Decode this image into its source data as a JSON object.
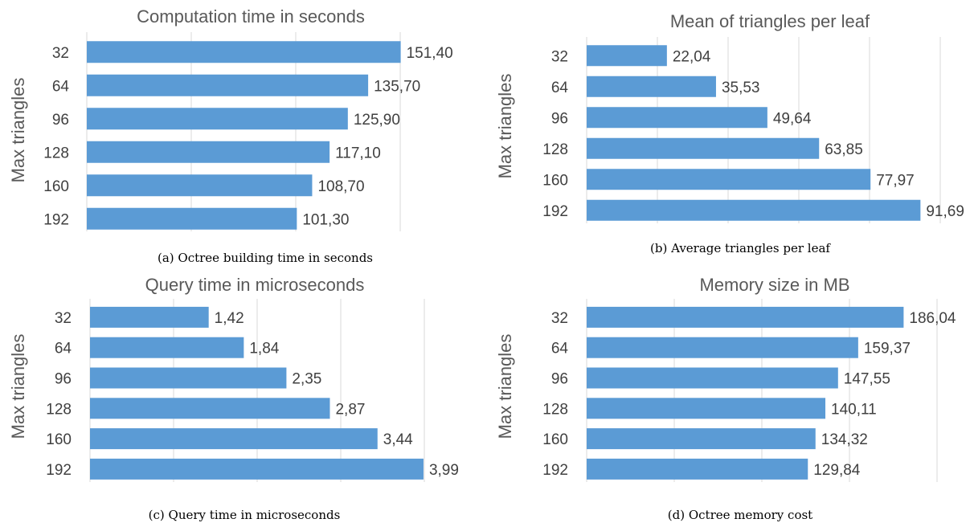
{
  "chart_data": [
    {
      "type": "bar",
      "orientation": "horizontal",
      "title": "Computation time in seconds",
      "ylabel": "Max triangles",
      "categories": [
        "32",
        "64",
        "96",
        "128",
        "160",
        "192"
      ],
      "values": [
        151.4,
        135.7,
        125.9,
        117.1,
        108.7,
        101.3
      ],
      "data_labels": [
        "151,40",
        "135,70",
        "125,90",
        "117,10",
        "108,70",
        "101,30"
      ],
      "xlim": [
        0,
        200
      ],
      "grid": true,
      "caption": "(a) Octree building time in seconds"
    },
    {
      "type": "bar",
      "orientation": "horizontal",
      "title": "Mean of triangles per leaf",
      "ylabel": "Max triangles",
      "categories": [
        "32",
        "64",
        "96",
        "128",
        "160",
        "192"
      ],
      "values": [
        22.04,
        35.53,
        49.64,
        63.85,
        77.97,
        91.69
      ],
      "data_labels": [
        "22,04",
        "35,53",
        "49,64",
        "63,85",
        "77,97",
        "91,69"
      ],
      "xlim": [
        0,
        100
      ],
      "grid": true,
      "caption": "(b) Average triangles per leaf"
    },
    {
      "type": "bar",
      "orientation": "horizontal",
      "title": "Query time in microseconds",
      "ylabel": "Max triangles",
      "categories": [
        "32",
        "64",
        "96",
        "128",
        "160",
        "192"
      ],
      "values": [
        1.42,
        1.84,
        2.35,
        2.87,
        3.44,
        3.99
      ],
      "data_labels": [
        "1,42",
        "1,84",
        "2,35",
        "2,87",
        "3,44",
        "3,99"
      ],
      "xlim": [
        0,
        4.5
      ],
      "grid": true,
      "caption": "(c) Query time in microseconds"
    },
    {
      "type": "bar",
      "orientation": "horizontal",
      "title": "Memory size in MB",
      "ylabel": "Max triangles",
      "categories": [
        "32",
        "64",
        "96",
        "128",
        "160",
        "192"
      ],
      "values": [
        186.04,
        159.37,
        147.55,
        140.11,
        134.32,
        129.84
      ],
      "data_labels": [
        "186,04",
        "159,37",
        "147,55",
        "140,11",
        "134,32",
        "129,84"
      ],
      "xlim": [
        0,
        200
      ],
      "grid": true,
      "caption": "(d) Octree memory cost"
    }
  ],
  "colors": {
    "bar": "#5b9bd5",
    "grid": "#d9d9d9",
    "text": "#404040",
    "title": "#595959"
  }
}
